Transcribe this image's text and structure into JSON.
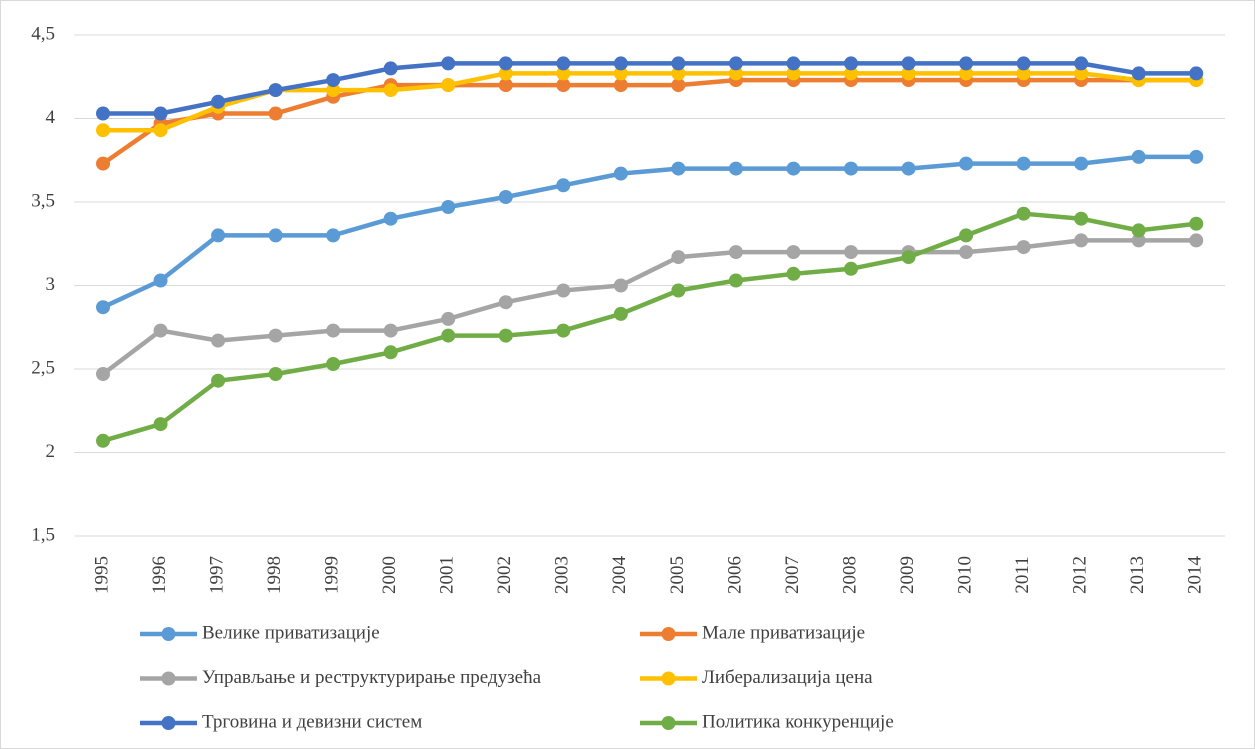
{
  "chart_data": {
    "type": "line",
    "categories": [
      "1995",
      "1996",
      "1997",
      "1998",
      "1999",
      "2000",
      "2001",
      "2002",
      "2003",
      "2004",
      "2005",
      "2006",
      "2007",
      "2008",
      "2009",
      "2010",
      "2011",
      "2012",
      "2013",
      "2014"
    ],
    "ylim": [
      1.5,
      4.5
    ],
    "yticks": [
      {
        "value": 1.5,
        "label": "1,5"
      },
      2,
      {
        "value": 2.5,
        "label": "2,5"
      },
      3,
      {
        "value": 3.5,
        "label": "3,5"
      },
      4,
      {
        "value": 4.5,
        "label": "4,5"
      }
    ],
    "grid": true,
    "legend": "bottom",
    "series": [
      {
        "name": "Велике приватизације",
        "color": "#5b9bd5",
        "values": [
          2.87,
          3.03,
          3.3,
          3.3,
          3.3,
          3.4,
          3.47,
          3.53,
          3.6,
          3.67,
          3.7,
          3.7,
          3.7,
          3.7,
          3.7,
          3.73,
          3.73,
          3.73,
          3.77,
          3.77
        ]
      },
      {
        "name": "Мале приватизације",
        "color": "#ed7d31",
        "values": [
          3.73,
          3.97,
          4.03,
          4.03,
          4.13,
          4.2,
          4.2,
          4.2,
          4.2,
          4.2,
          4.2,
          4.23,
          4.23,
          4.23,
          4.23,
          4.23,
          4.23,
          4.23,
          4.23,
          4.23
        ]
      },
      {
        "name": "Управљање и реструктурирање предузећа",
        "color": "#a5a5a5",
        "values": [
          2.47,
          2.73,
          2.67,
          2.7,
          2.73,
          2.73,
          2.8,
          2.9,
          2.97,
          3.0,
          3.17,
          3.2,
          3.2,
          3.2,
          3.2,
          3.2,
          3.23,
          3.27,
          3.27,
          3.27
        ]
      },
      {
        "name": "Либерализација цена",
        "color": "#ffc000",
        "values": [
          3.93,
          3.93,
          4.07,
          4.17,
          4.17,
          4.17,
          4.2,
          4.27,
          4.27,
          4.27,
          4.27,
          4.27,
          4.27,
          4.27,
          4.27,
          4.27,
          4.27,
          4.27,
          4.23,
          4.23
        ]
      },
      {
        "name": "Трговина и девизни систем",
        "color": "#4472c4",
        "values": [
          4.03,
          4.03,
          4.1,
          4.17,
          4.23,
          4.3,
          4.33,
          4.33,
          4.33,
          4.33,
          4.33,
          4.33,
          4.33,
          4.33,
          4.33,
          4.33,
          4.33,
          4.33,
          4.27,
          4.27
        ]
      },
      {
        "name": "Политика конкуренције",
        "color": "#70ad47",
        "values": [
          2.07,
          2.17,
          2.43,
          2.47,
          2.53,
          2.6,
          2.7,
          2.7,
          2.73,
          2.83,
          2.97,
          3.03,
          3.07,
          3.1,
          3.17,
          3.3,
          3.43,
          3.4,
          3.33,
          3.37
        ]
      }
    ]
  }
}
